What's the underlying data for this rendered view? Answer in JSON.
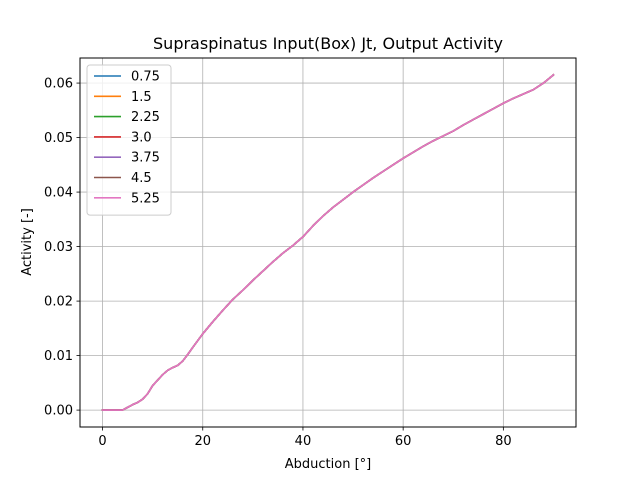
{
  "chart_data": {
    "type": "line",
    "title": "Supraspinatus Input(Box) Jt, Output Activity",
    "xlabel": "Abduction [°]",
    "ylabel": "Activity [-]",
    "xlim": [
      -4.5,
      94.5
    ],
    "ylim": [
      -0.0031,
      0.0646
    ],
    "xticks": [
      0,
      20,
      40,
      60,
      80
    ],
    "yticks": [
      0.0,
      0.01,
      0.02,
      0.03,
      0.04,
      0.05,
      0.06
    ],
    "ytick_labels": [
      "0.00",
      "0.01",
      "0.02",
      "0.03",
      "0.04",
      "0.05",
      "0.06"
    ],
    "grid": true,
    "legend_position": "top-left",
    "x": [
      0,
      2,
      4,
      5,
      6,
      7,
      8,
      9,
      10,
      11,
      12,
      13,
      14,
      15,
      16,
      17,
      18,
      20,
      22,
      24,
      26,
      28,
      30,
      32,
      34,
      36,
      38,
      40,
      42,
      44,
      46,
      48,
      50,
      52,
      54,
      56,
      58,
      60,
      62,
      64,
      66,
      68,
      70,
      72,
      74,
      76,
      78,
      80,
      82,
      84,
      86,
      88,
      90
    ],
    "series": [
      {
        "name": "0.75",
        "color": "#1f77b4"
      },
      {
        "name": "1.5",
        "color": "#ff7f0e"
      },
      {
        "name": "2.25",
        "color": "#2ca02c"
      },
      {
        "name": "3.0",
        "color": "#d62728"
      },
      {
        "name": "3.75",
        "color": "#9467bd"
      },
      {
        "name": "4.5",
        "color": "#8c564b"
      },
      {
        "name": "5.25",
        "color": "#e377c2"
      }
    ],
    "values": [
      0.0,
      0.0,
      0.0,
      0.0005,
      0.001,
      0.0014,
      0.002,
      0.003,
      0.0045,
      0.0055,
      0.0065,
      0.0073,
      0.0078,
      0.0082,
      0.009,
      0.0102,
      0.0115,
      0.014,
      0.0162,
      0.0183,
      0.0203,
      0.022,
      0.0238,
      0.0255,
      0.0272,
      0.0288,
      0.0302,
      0.0318,
      0.0338,
      0.0356,
      0.0372,
      0.0386,
      0.04,
      0.0413,
      0.0426,
      0.0438,
      0.045,
      0.0462,
      0.0473,
      0.0484,
      0.0494,
      0.0503,
      0.0512,
      0.0523,
      0.0533,
      0.0543,
      0.0553,
      0.0563,
      0.0572,
      0.058,
      0.0588,
      0.06,
      0.0615
    ]
  }
}
